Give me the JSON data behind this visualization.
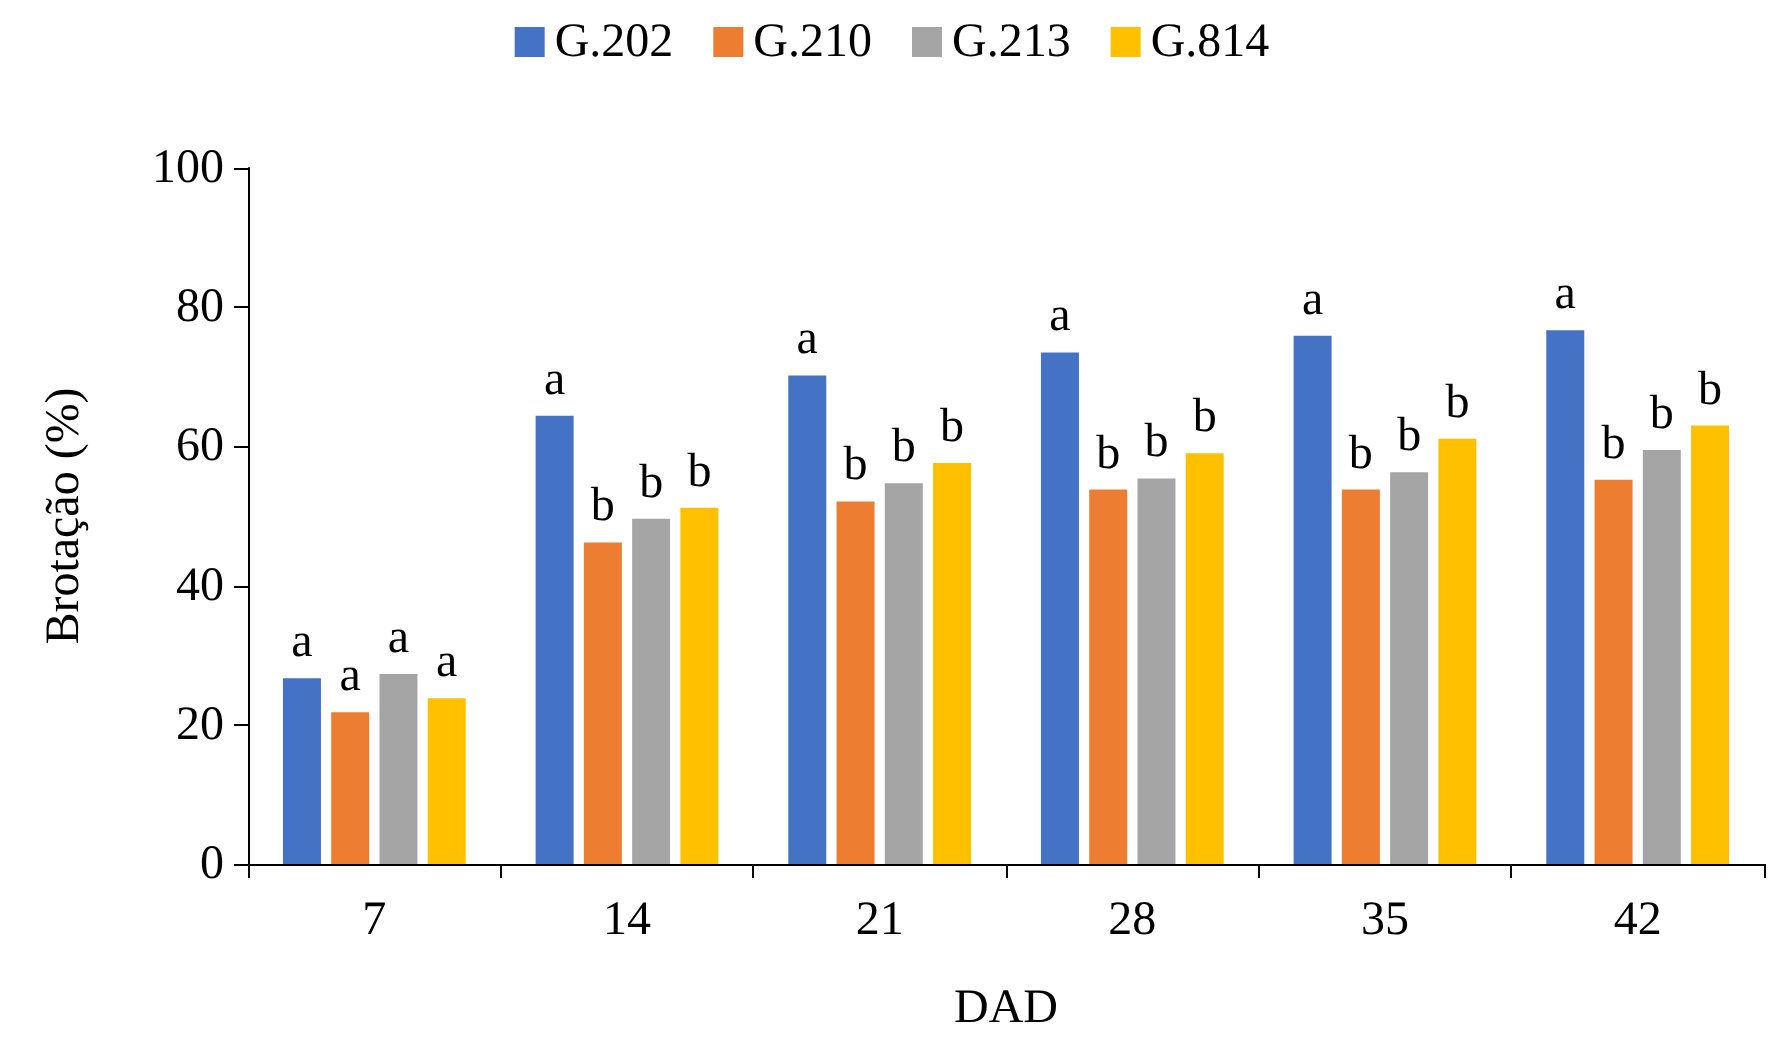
{
  "chart_data": {
    "type": "bar",
    "xlabel": "DAD",
    "ylabel": "Brotação (%)",
    "categories": [
      "7",
      "14",
      "21",
      "28",
      "35",
      "42"
    ],
    "series": [
      {
        "name": "G.202",
        "color": "#4472c4",
        "values": [
          26.7,
          64.4,
          70.2,
          73.5,
          75.9,
          76.7
        ],
        "value_labels": [
          "a",
          "a",
          "a",
          "a",
          "a",
          "a"
        ]
      },
      {
        "name": "G.210",
        "color": "#ed7d31",
        "values": [
          21.8,
          46.2,
          52.1,
          53.8,
          53.8,
          55.2
        ],
        "value_labels": [
          "a",
          "b",
          "b",
          "b",
          "b",
          "b"
        ]
      },
      {
        "name": "G.213",
        "color": "#a5a5a5",
        "values": [
          27.3,
          49.6,
          54.7,
          55.4,
          56.3,
          59.5
        ],
        "value_labels": [
          "a",
          "b",
          "b",
          "b",
          "b",
          "b"
        ]
      },
      {
        "name": "G.814",
        "color": "#ffc000",
        "values": [
          23.8,
          51.2,
          57.6,
          59.0,
          61.1,
          63.0
        ],
        "value_labels": [
          "a",
          "b",
          "b",
          "b",
          "b",
          "b"
        ]
      }
    ],
    "ylim": [
      0,
      100
    ],
    "yticks": [
      0,
      20,
      40,
      60,
      80,
      100
    ],
    "grid": false,
    "legend": "top"
  }
}
